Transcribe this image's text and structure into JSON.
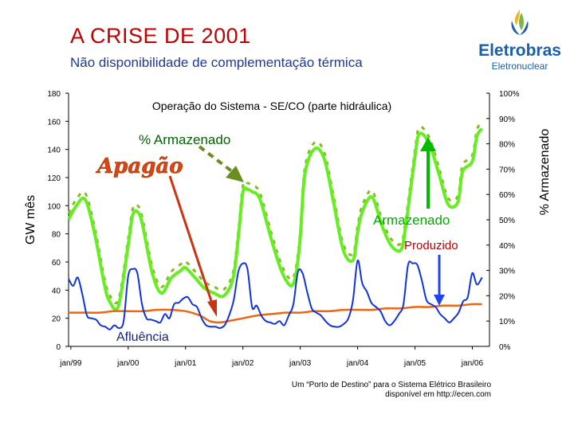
{
  "slide": {
    "title": "A CRISE DE 2001",
    "subtitle": "Não disponibilidade de complementação térmica"
  },
  "logo": {
    "name": "Eletrobras",
    "sub": "Eletronuclear",
    "colors": [
      "#f6b21b",
      "#7ab648",
      "#1b5fa8"
    ]
  },
  "source_note": {
    "line1": "Um “Porto de Destino” para o Sistema Elétrico Brasileiro",
    "line2": "disponível em http://ecen.com"
  },
  "chart_data": {
    "type": "line",
    "title": "Operação do Sistema - SE/CO (parte hidráulica)",
    "ylabel": "GW mês",
    "y2label": "% Armazenado",
    "ylim": [
      0,
      180
    ],
    "y2lim": [
      0,
      100
    ],
    "y_ticks": [
      "0",
      "20",
      "40",
      "60",
      "80",
      "100",
      "120",
      "140",
      "160",
      "180"
    ],
    "y2_ticks": [
      "0%",
      "10%",
      "20%",
      "30%",
      "40%",
      "50%",
      "60%",
      "70%",
      "80%",
      "90%",
      "100%"
    ],
    "x_ticks": [
      "jan/99",
      "jan/00",
      "jan/01",
      "jan/02",
      "jan/03",
      "jan/04",
      "jan/05",
      "jan/06"
    ],
    "x_range": [
      1998.96,
      2006.3
    ],
    "grid": false,
    "annotations": {
      "apagao": "Apagão",
      "armazenado_pct": "% Armazenado",
      "armazenado": "Armazenado",
      "produzido": "Produzido",
      "afluencia": "Afluência"
    },
    "colors": {
      "armazenado": "#66ee22",
      "armazenado_dashed": "#88bb22",
      "produzido": "#ee6611",
      "afluencia": "#1133dd",
      "apagao_text": "#dd4411",
      "apagao_arrow": "#cc3311",
      "pct_arrow": "#6b8e23",
      "green_arrow": "#00bb00",
      "blue_arrow": "#2244ee"
    },
    "series": [
      {
        "key": "armazenado",
        "axis": "right",
        "x": [
          1998.96,
          1999.08,
          1999.25,
          1999.42,
          1999.58,
          1999.67,
          1999.83,
          2000.0,
          2000.08,
          2000.17,
          2000.25,
          2000.42,
          2000.58,
          2000.75,
          2000.92,
          2001.0,
          2001.17,
          2001.33,
          2001.5,
          2001.67,
          2001.83,
          2001.92,
          2002.0,
          2002.08,
          2002.17,
          2002.25,
          2002.33,
          2002.5,
          2002.67,
          2002.83,
          2002.92,
          2003.0,
          2003.08,
          2003.25,
          2003.42,
          2003.58,
          2003.75,
          2003.92,
          2004.0,
          2004.08,
          2004.25,
          2004.42,
          2004.58,
          2004.75,
          2004.83,
          2005.0,
          2005.08,
          2005.25,
          2005.42,
          2005.58,
          2005.75,
          2005.83,
          2006.0,
          2006.08,
          2006.17
        ],
        "values": [
          50,
          55,
          58,
          44,
          25,
          18,
          16,
          40,
          52,
          53,
          48,
          29,
          21,
          27,
          30,
          31,
          27,
          23,
          21,
          20,
          27,
          43,
          61,
          62,
          61,
          60,
          56,
          42,
          30,
          24,
          28,
          43,
          68,
          78,
          74,
          57,
          38,
          34,
          45,
          53,
          59,
          48,
          40,
          38,
          46,
          75,
          84,
          80,
          68,
          56,
          57,
          69,
          73,
          83,
          86
        ]
      },
      {
        "key": "produzido",
        "axis": "left",
        "x": [
          1998.96,
          1999.25,
          1999.5,
          1999.75,
          2000.0,
          2000.25,
          2000.5,
          2000.75,
          2001.0,
          2001.25,
          2001.42,
          2001.58,
          2001.75,
          2002.0,
          2002.25,
          2002.5,
          2002.75,
          2003.0,
          2003.25,
          2003.5,
          2003.75,
          2004.0,
          2004.25,
          2004.5,
          2004.75,
          2005.0,
          2005.25,
          2005.5,
          2005.75,
          2006.0,
          2006.17
        ],
        "values": [
          24,
          24,
          24,
          25,
          25,
          25,
          26,
          26,
          25,
          22,
          18,
          17,
          18,
          20,
          22,
          23,
          24,
          24,
          25,
          25,
          26,
          26,
          26,
          27,
          27,
          28,
          28,
          29,
          29,
          30,
          30
        ]
      },
      {
        "key": "afluencia",
        "axis": "left",
        "x": [
          1998.96,
          1999.04,
          1999.12,
          1999.2,
          1999.28,
          1999.36,
          1999.44,
          1999.52,
          1999.6,
          1999.68,
          1999.76,
          1999.84,
          1999.92,
          2000.0,
          2000.08,
          2000.16,
          2000.24,
          2000.32,
          2000.4,
          2000.48,
          2000.56,
          2000.64,
          2000.72,
          2000.8,
          2000.88,
          2000.96,
          2001.04,
          2001.12,
          2001.2,
          2001.28,
          2001.36,
          2001.44,
          2001.52,
          2001.6,
          2001.68,
          2001.76,
          2001.84,
          2001.92,
          2002.0,
          2002.08,
          2002.16,
          2002.24,
          2002.32,
          2002.4,
          2002.48,
          2002.56,
          2002.64,
          2002.72,
          2002.8,
          2002.88,
          2002.96,
          2003.04,
          2003.12,
          2003.2,
          2003.28,
          2003.36,
          2003.44,
          2003.52,
          2003.6,
          2003.68,
          2003.76,
          2003.84,
          2003.92,
          2004.0,
          2004.08,
          2004.16,
          2004.24,
          2004.32,
          2004.4,
          2004.48,
          2004.56,
          2004.64,
          2004.72,
          2004.8,
          2004.88,
          2004.96,
          2005.04,
          2005.12,
          2005.2,
          2005.28,
          2005.36,
          2005.44,
          2005.52,
          2005.6,
          2005.68,
          2005.76,
          2005.84,
          2005.92,
          2006.0,
          2006.08,
          2006.17
        ],
        "values": [
          48,
          43,
          49,
          37,
          22,
          20,
          19,
          15,
          14,
          12,
          15,
          13,
          18,
          50,
          55,
          52,
          30,
          20,
          19,
          18,
          17,
          23,
          20,
          30,
          31,
          34,
          35,
          30,
          28,
          20,
          15,
          14,
          14,
          13,
          15,
          22,
          33,
          53,
          59,
          55,
          28,
          29,
          22,
          18,
          17,
          16,
          18,
          15,
          22,
          30,
          53,
          52,
          39,
          27,
          24,
          22,
          18,
          15,
          14,
          14,
          16,
          20,
          33,
          61,
          45,
          39,
          31,
          28,
          25,
          18,
          15,
          18,
          23,
          30,
          58,
          59,
          58,
          47,
          33,
          30,
          28,
          23,
          20,
          17,
          20,
          24,
          32,
          35,
          52,
          44,
          49
        ]
      }
    ]
  }
}
